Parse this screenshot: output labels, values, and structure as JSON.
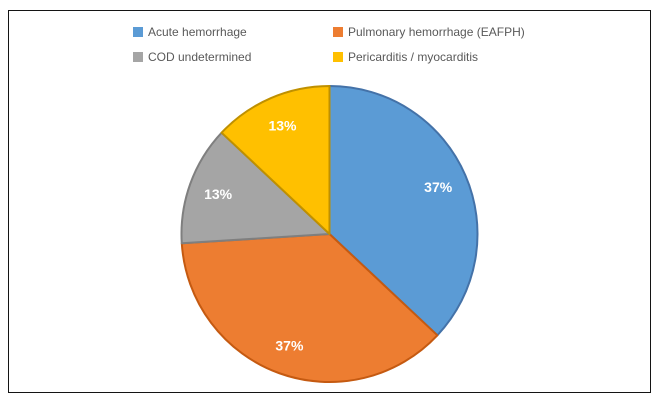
{
  "frame": {
    "background": "#ffffff",
    "border_color": "#141414"
  },
  "legend": {
    "position": "top",
    "text_color": "#595959",
    "items": [
      {
        "label": "Acute hemorrhage",
        "color": "#5B9BD5"
      },
      {
        "label": "Pulmonary hemorrhage (EAFPH)",
        "color": "#ED7D31"
      },
      {
        "label": "COD undetermined",
        "color": "#A5A5A5"
      },
      {
        "label": "Pericarditis / myocarditis",
        "color": "#FFC000"
      }
    ]
  },
  "chart_data": {
    "type": "pie",
    "title": "",
    "categories": [
      "Acute hemorrhage",
      "Pulmonary hemorrhage (EAFPH)",
      "COD undetermined",
      "Pericarditis / myocarditis"
    ],
    "values": [
      37,
      37,
      13,
      13
    ],
    "labels": [
      "37%",
      "37%",
      "13%",
      "13%"
    ],
    "colors": [
      "#5B9BD5",
      "#ED7D31",
      "#A5A5A5",
      "#FFC000"
    ],
    "border_colors": [
      "#4472A8",
      "#C55A11",
      "#7F7F7F",
      "#BF9000"
    ],
    "label_color": "#FFFFFF",
    "start_angle_deg": 0,
    "direction": "clockwise",
    "legend_position": "top",
    "grid": false
  }
}
